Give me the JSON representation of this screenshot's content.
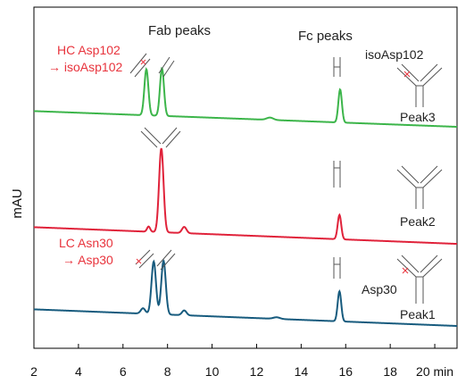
{
  "chart_data": {
    "type": "line",
    "title": "",
    "xlabel": "",
    "ylabel": "mAU",
    "xlim": [
      2,
      21
    ],
    "ylim": [
      0,
      1
    ],
    "x_ticks": [
      2,
      4,
      6,
      8,
      10,
      12,
      14,
      16,
      18,
      20
    ],
    "x_unit": "min",
    "grid": false,
    "annotations": [
      {
        "id": "fab_peaks",
        "text": "Fab peaks",
        "color": "#222222"
      },
      {
        "id": "fc_peaks",
        "text": "Fc peaks",
        "color": "#222222"
      },
      {
        "id": "hc_line1",
        "text": "HC Asp102",
        "color": "#e8333c"
      },
      {
        "id": "hc_line2",
        "text": "→ isoAsp102",
        "color": "#e8333c"
      },
      {
        "id": "iso_label",
        "text": "isoAsp102",
        "color": "#222222"
      },
      {
        "id": "lc_line1",
        "text": "LC Asn30",
        "color": "#e8333c"
      },
      {
        "id": "lc_line2",
        "text": "→ Asp30",
        "color": "#e8333c"
      },
      {
        "id": "asp30_label",
        "text": "Asp30",
        "color": "#222222"
      }
    ],
    "series": [
      {
        "name": "Peak3",
        "color": "#3cb54a",
        "baseline": 0.28,
        "slope": 0.002,
        "peaks": [
          {
            "x": 7.05,
            "height": 0.6,
            "width": 0.09
          },
          {
            "x": 7.75,
            "height": 0.62,
            "width": 0.09
          },
          {
            "x": 12.6,
            "height": 0.03,
            "width": 0.15
          },
          {
            "x": 15.75,
            "height": 0.43,
            "width": 0.08
          }
        ]
      },
      {
        "name": "Peak2",
        "color": "#e0223a",
        "baseline": 0.28,
        "slope": 0.002,
        "peaks": [
          {
            "x": 7.15,
            "height": 0.1,
            "width": 0.07
          },
          {
            "x": 7.72,
            "height": 1.62,
            "width": 0.1
          },
          {
            "x": 8.75,
            "height": 0.12,
            "width": 0.1
          },
          {
            "x": 15.72,
            "height": 0.47,
            "width": 0.08
          }
        ]
      },
      {
        "name": "Peak1",
        "color": "#175b7e",
        "baseline": 0.28,
        "slope": 0.002,
        "peaks": [
          {
            "x": 6.9,
            "height": 0.1,
            "width": 0.1
          },
          {
            "x": 7.38,
            "height": 0.98,
            "width": 0.1
          },
          {
            "x": 7.82,
            "height": 1.0,
            "width": 0.1
          },
          {
            "x": 8.75,
            "height": 0.09,
            "width": 0.1
          },
          {
            "x": 12.9,
            "height": 0.03,
            "width": 0.15
          },
          {
            "x": 15.72,
            "height": 0.56,
            "width": 0.08
          }
        ]
      }
    ]
  }
}
